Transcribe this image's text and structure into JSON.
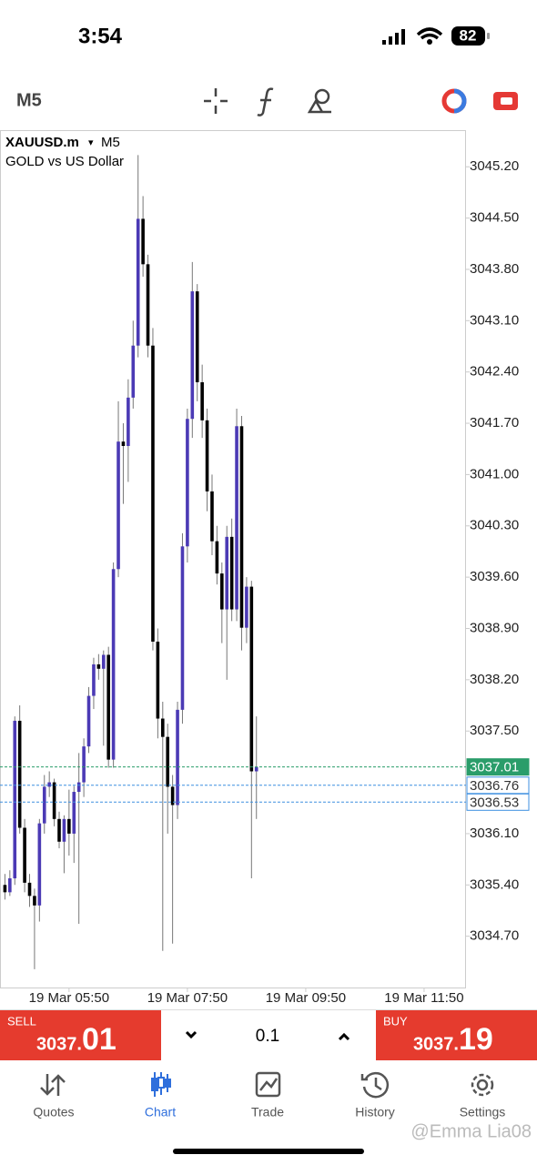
{
  "status_bar": {
    "time": "3:54",
    "battery": "82"
  },
  "toolbar": {
    "timeframe": "M5"
  },
  "chart_data": {
    "type": "candlestick",
    "symbol": "XAUUSD.m",
    "symbol_arrow": "▾",
    "timeframe": "M5",
    "description": "GOLD vs US Dollar",
    "up_color": "#4b3ab5",
    "down_color": "#000000",
    "candles": {
      "open": [
        3035.4,
        3035.3,
        3035.49,
        3037.64,
        3036.18,
        3035.43,
        3035.25,
        3035.12,
        3036.24,
        3036.74,
        3036.8,
        3036.3,
        3035.99,
        3036.3,
        3036.1,
        3036.67,
        3036.8,
        3037.29,
        3037.98,
        3038.41,
        3038.35,
        3038.54,
        3037.11,
        3039.71,
        3041.45,
        3041.39,
        3042.05,
        3042.76,
        3044.49,
        3043.87,
        3042.76,
        3038.72,
        3037.67,
        3037.42,
        3036.74,
        3036.49,
        3037.79,
        3040.02,
        3041.76,
        3043.5,
        3042.26,
        3041.74,
        3040.77,
        3040.09,
        3039.65,
        3039.16,
        3040.15,
        3039.16,
        3041.66,
        3038.91,
        3039.47,
        3036.95
      ],
      "high": [
        3035.55,
        3035.6,
        3037.7,
        3037.85,
        3036.3,
        3035.55,
        3035.35,
        3036.3,
        3036.9,
        3036.95,
        3036.85,
        3036.4,
        3036.35,
        3036.7,
        3036.75,
        3037.2,
        3037.4,
        3038.1,
        3038.5,
        3038.55,
        3038.6,
        3038.65,
        3039.8,
        3042.0,
        3041.7,
        3042.3,
        3043.1,
        3045.36,
        3044.8,
        3044.0,
        3043.0,
        3038.9,
        3037.9,
        3037.6,
        3036.9,
        3037.9,
        3040.2,
        3041.9,
        3043.9,
        3043.6,
        3042.5,
        3041.9,
        3041.0,
        3040.3,
        3039.8,
        3040.3,
        3040.4,
        3041.9,
        3041.8,
        3039.6,
        3039.55,
        3037.7
      ],
      "low": [
        3035.2,
        3035.25,
        3035.4,
        3036.1,
        3035.3,
        3035.1,
        3034.25,
        3034.9,
        3036.1,
        3036.6,
        3036.2,
        3035.9,
        3035.56,
        3035.8,
        3035.7,
        3034.87,
        3036.6,
        3037.2,
        3037.8,
        3038.2,
        3037.3,
        3037.0,
        3037.0,
        3039.6,
        3040.6,
        3040.9,
        3041.9,
        3042.6,
        3043.7,
        3042.6,
        3038.6,
        3037.4,
        3034.5,
        3036.1,
        3034.6,
        3036.3,
        3037.6,
        3039.8,
        3041.5,
        3042.0,
        3041.5,
        3040.5,
        3039.9,
        3039.5,
        3038.7,
        3038.2,
        3039.0,
        3039.0,
        3038.6,
        3038.7,
        3035.49,
        3036.3
      ],
      "close": [
        3035.3,
        3035.49,
        3037.64,
        3036.18,
        3035.43,
        3035.25,
        3035.12,
        3036.24,
        3036.74,
        3036.8,
        3036.3,
        3035.99,
        3036.3,
        3036.1,
        3036.67,
        3036.8,
        3037.29,
        3037.98,
        3038.41,
        3038.35,
        3038.54,
        3037.11,
        3039.71,
        3041.45,
        3041.39,
        3042.05,
        3042.76,
        3044.49,
        3043.87,
        3042.76,
        3038.72,
        3037.67,
        3037.42,
        3036.74,
        3036.49,
        3037.79,
        3040.02,
        3041.76,
        3043.5,
        3042.26,
        3041.74,
        3040.77,
        3040.09,
        3039.65,
        3039.16,
        3040.15,
        3039.16,
        3041.66,
        3038.91,
        3039.47,
        3036.95,
        3037.01
      ]
    },
    "xlim": [
      -1,
      93.5
    ],
    "xticks": [
      {
        "value": 13,
        "label": "19 Mar 05:50"
      },
      {
        "value": 37,
        "label": "19 Mar 07:50"
      },
      {
        "value": 61,
        "label": "19 Mar 09:50"
      },
      {
        "value": 85,
        "label": "19 Mar 11:50"
      }
    ],
    "ylim": [
      3034.0,
      3045.7
    ],
    "yticks": [
      {
        "value": 3045.2,
        "label": "3045.20"
      },
      {
        "value": 3044.5,
        "label": "3044.50"
      },
      {
        "value": 3043.8,
        "label": "3043.80"
      },
      {
        "value": 3043.1,
        "label": "3043.10"
      },
      {
        "value": 3042.4,
        "label": "3042.40"
      },
      {
        "value": 3041.7,
        "label": "3041.70"
      },
      {
        "value": 3041,
        "label": "3041.00"
      },
      {
        "value": 3040.3,
        "label": "3040.30"
      },
      {
        "value": 3039.6,
        "label": "3039.60"
      },
      {
        "value": 3038.9,
        "label": "3038.90"
      },
      {
        "value": 3038.2,
        "label": "3038.20"
      },
      {
        "value": 3037.5,
        "label": "3037.50"
      },
      {
        "value": 3036.1,
        "label": "3036.10"
      },
      {
        "value": 3035.4,
        "label": "3035.40"
      },
      {
        "value": 3034.7,
        "label": "3034.70"
      }
    ],
    "price_lines": [
      {
        "value": 3037.01,
        "label": "3037.01",
        "color": "#2a9d6a"
      },
      {
        "value": 3036.76,
        "label": "3036.76",
        "color": "#3d8fe0"
      },
      {
        "value": 3036.53,
        "label": "3036.53",
        "color": "#3d8fe0"
      }
    ]
  },
  "trade_bar": {
    "sell": {
      "label": "SELL",
      "price_head": "3037.",
      "price_tail": "01"
    },
    "volume": "0.1",
    "buy": {
      "label": "BUY",
      "price_head": "3037.",
      "price_tail": "19"
    }
  },
  "tab_bar": {
    "tabs": [
      "Quotes",
      "Chart",
      "Trade",
      "History",
      "Settings"
    ]
  },
  "watermark": "@Emma Lia08"
}
